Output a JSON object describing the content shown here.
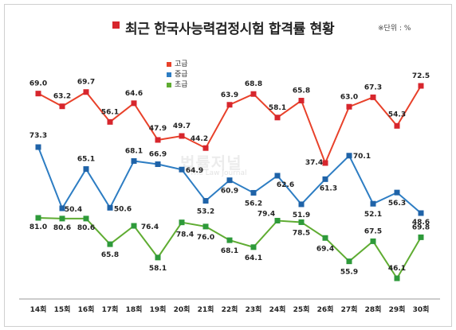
{
  "title": "최근 한국사능력검정시험 합격률 현황",
  "unit_note": "※단위 : %",
  "watermark": {
    "main": "법률저널",
    "sub": "The Law Journal"
  },
  "colors": {
    "title_marker": "#d7262d"
  },
  "legend": [
    {
      "label": "고급",
      "color": "#e8412a"
    },
    {
      "label": "중급",
      "color": "#2d7dc3"
    },
    {
      "label": "초급",
      "color": "#5fac32"
    }
  ],
  "chart_data": {
    "type": "line",
    "title": "최근 한국사능력검정시험 합격률 현황",
    "unit": "%",
    "categories": [
      "14회",
      "15회",
      "16회",
      "17회",
      "18회",
      "19회",
      "20회",
      "21회",
      "22회",
      "23회",
      "24회",
      "25회",
      "26회",
      "27회",
      "28회",
      "29회",
      "30회"
    ],
    "legend_position": "top-center",
    "grid": false,
    "series": [
      {
        "name": "고급",
        "color": "#e8412a",
        "marker_color": "#d7262d",
        "values": [
          69.0,
          63.2,
          69.7,
          56.1,
          64.6,
          47.9,
          49.7,
          44.2,
          63.9,
          68.8,
          58.1,
          65.8,
          37.4,
          63.0,
          67.3,
          54.3,
          72.5
        ]
      },
      {
        "name": "중급",
        "color": "#2d7dc3",
        "marker_color": "#1f63a8",
        "values": [
          73.3,
          50.4,
          65.1,
          50.6,
          68.1,
          66.9,
          64.9,
          53.2,
          60.9,
          56.2,
          62.6,
          51.9,
          61.3,
          70.1,
          52.1,
          56.3,
          48.6
        ]
      },
      {
        "name": "초급",
        "color": "#5fac32",
        "marker_color": "#2e9a3a",
        "values": [
          81.0,
          80.6,
          80.6,
          65.8,
          76.4,
          58.1,
          78.4,
          76.0,
          68.1,
          64.1,
          79.4,
          78.5,
          69.4,
          55.9,
          67.5,
          46.1,
          69.8
        ]
      }
    ]
  }
}
